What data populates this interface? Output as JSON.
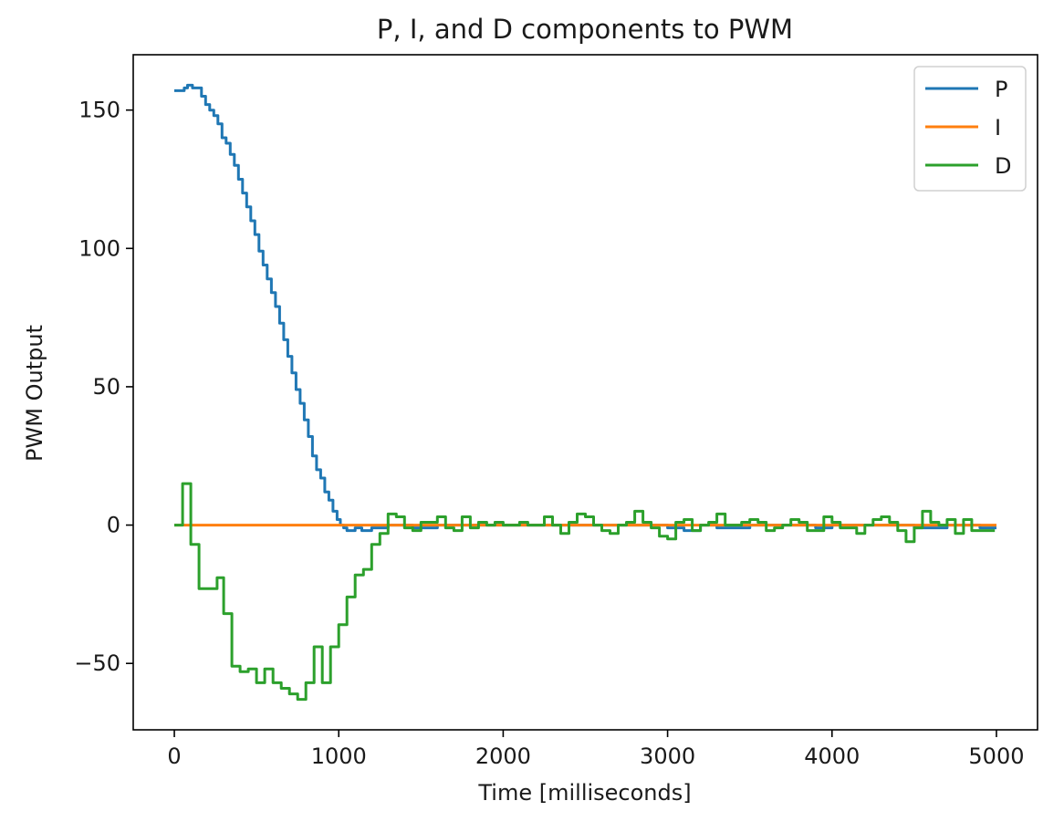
{
  "chart_data": {
    "type": "line",
    "title": "P, I, and D components to PWM",
    "xlabel": "Time [milliseconds]",
    "ylabel": "PWM Output",
    "xlim": [
      -250,
      5250
    ],
    "ylim": [
      -74,
      170
    ],
    "xticks": [
      0,
      1000,
      2000,
      3000,
      4000,
      5000
    ],
    "xtick_labels": [
      "0",
      "1000",
      "2000",
      "3000",
      "4000",
      "5000"
    ],
    "yticks": [
      -50,
      0,
      50,
      100,
      150
    ],
    "ytick_labels": [
      "−50",
      "0",
      "50",
      "100",
      "150"
    ],
    "grid": false,
    "legend_position": "top-right",
    "series": [
      {
        "name": "P",
        "color": "#1f77b4",
        "step": true,
        "points": [
          [
            0,
            157
          ],
          [
            50,
            157
          ],
          [
            60,
            158
          ],
          [
            80,
            159
          ],
          [
            100,
            159
          ],
          [
            110,
            158
          ],
          [
            150,
            158
          ],
          [
            165,
            155
          ],
          [
            190,
            152
          ],
          [
            215,
            150
          ],
          [
            240,
            148
          ],
          [
            265,
            145
          ],
          [
            290,
            140
          ],
          [
            315,
            138
          ],
          [
            340,
            134
          ],
          [
            365,
            130
          ],
          [
            390,
            125
          ],
          [
            415,
            120
          ],
          [
            440,
            115
          ],
          [
            465,
            110
          ],
          [
            490,
            105
          ],
          [
            515,
            99
          ],
          [
            540,
            94
          ],
          [
            565,
            89
          ],
          [
            590,
            84
          ],
          [
            615,
            79
          ],
          [
            640,
            73
          ],
          [
            665,
            67
          ],
          [
            690,
            61
          ],
          [
            715,
            55
          ],
          [
            740,
            49
          ],
          [
            765,
            44
          ],
          [
            790,
            38
          ],
          [
            815,
            32
          ],
          [
            840,
            25
          ],
          [
            865,
            20
          ],
          [
            890,
            17
          ],
          [
            915,
            12
          ],
          [
            940,
            9
          ],
          [
            965,
            5
          ],
          [
            990,
            2
          ],
          [
            1010,
            0
          ],
          [
            1030,
            -1
          ],
          [
            1050,
            -2
          ],
          [
            1100,
            -1
          ],
          [
            1140,
            -2
          ],
          [
            1200,
            -1
          ],
          [
            1300,
            0
          ],
          [
            1450,
            -1
          ],
          [
            1600,
            0
          ],
          [
            2400,
            0
          ],
          [
            2600,
            0
          ],
          [
            2900,
            0
          ],
          [
            3000,
            -1
          ],
          [
            3100,
            -2
          ],
          [
            3200,
            0
          ],
          [
            3300,
            -1
          ],
          [
            3500,
            0
          ],
          [
            3900,
            -1
          ],
          [
            4000,
            0
          ],
          [
            4500,
            -1
          ],
          [
            4700,
            0
          ],
          [
            4900,
            -1
          ],
          [
            5000,
            -1
          ]
        ]
      },
      {
        "name": "I",
        "color": "#ff7f0e",
        "step": false,
        "points": [
          [
            0,
            0
          ],
          [
            5000,
            0
          ]
        ]
      },
      {
        "name": "D",
        "color": "#2ca02c",
        "step": true,
        "points": [
          [
            0,
            0
          ],
          [
            40,
            0
          ],
          [
            50,
            15
          ],
          [
            90,
            15
          ],
          [
            100,
            -7
          ],
          [
            140,
            -7
          ],
          [
            150,
            -23
          ],
          [
            250,
            -23
          ],
          [
            260,
            -19
          ],
          [
            290,
            -19
          ],
          [
            300,
            -32
          ],
          [
            340,
            -32
          ],
          [
            350,
            -51
          ],
          [
            390,
            -51
          ],
          [
            400,
            -53
          ],
          [
            440,
            -53
          ],
          [
            450,
            -52
          ],
          [
            490,
            -52
          ],
          [
            500,
            -57
          ],
          [
            540,
            -57
          ],
          [
            550,
            -52
          ],
          [
            590,
            -52
          ],
          [
            600,
            -57
          ],
          [
            640,
            -57
          ],
          [
            650,
            -59
          ],
          [
            690,
            -59
          ],
          [
            700,
            -61
          ],
          [
            740,
            -61
          ],
          [
            750,
            -63
          ],
          [
            790,
            -63
          ],
          [
            800,
            -57
          ],
          [
            840,
            -57
          ],
          [
            850,
            -44
          ],
          [
            890,
            -44
          ],
          [
            900,
            -57
          ],
          [
            940,
            -57
          ],
          [
            950,
            -44
          ],
          [
            990,
            -44
          ],
          [
            1000,
            -36
          ],
          [
            1040,
            -36
          ],
          [
            1050,
            -26
          ],
          [
            1090,
            -26
          ],
          [
            1100,
            -18
          ],
          [
            1140,
            -18
          ],
          [
            1150,
            -16
          ],
          [
            1190,
            -16
          ],
          [
            1200,
            -7
          ],
          [
            1240,
            -7
          ],
          [
            1250,
            -3
          ],
          [
            1290,
            -3
          ],
          [
            1300,
            4
          ],
          [
            1340,
            4
          ],
          [
            1350,
            3
          ],
          [
            1390,
            3
          ],
          [
            1400,
            -1
          ],
          [
            1440,
            -1
          ],
          [
            1450,
            -2
          ],
          [
            1490,
            -2
          ],
          [
            1500,
            1
          ],
          [
            1540,
            1
          ],
          [
            1550,
            1
          ],
          [
            1590,
            1
          ],
          [
            1600,
            3
          ],
          [
            1640,
            3
          ],
          [
            1650,
            -1
          ],
          [
            1690,
            -1
          ],
          [
            1700,
            -2
          ],
          [
            1740,
            -2
          ],
          [
            1750,
            3
          ],
          [
            1790,
            3
          ],
          [
            1800,
            -1
          ],
          [
            1840,
            -1
          ],
          [
            1850,
            1
          ],
          [
            1890,
            1
          ],
          [
            1900,
            0
          ],
          [
            1940,
            0
          ],
          [
            1950,
            1
          ],
          [
            1990,
            1
          ],
          [
            2000,
            0
          ],
          [
            2100,
            1
          ],
          [
            2150,
            0
          ],
          [
            2200,
            0
          ],
          [
            2250,
            3
          ],
          [
            2290,
            3
          ],
          [
            2300,
            0
          ],
          [
            2340,
            0
          ],
          [
            2350,
            -3
          ],
          [
            2390,
            -3
          ],
          [
            2400,
            1
          ],
          [
            2440,
            1
          ],
          [
            2450,
            4
          ],
          [
            2490,
            4
          ],
          [
            2500,
            3
          ],
          [
            2540,
            3
          ],
          [
            2550,
            0
          ],
          [
            2590,
            0
          ],
          [
            2600,
            -2
          ],
          [
            2640,
            -2
          ],
          [
            2650,
            -3
          ],
          [
            2690,
            -3
          ],
          [
            2700,
            0
          ],
          [
            2740,
            0
          ],
          [
            2750,
            1
          ],
          [
            2790,
            1
          ],
          [
            2800,
            5
          ],
          [
            2840,
            5
          ],
          [
            2850,
            1
          ],
          [
            2890,
            1
          ],
          [
            2900,
            -1
          ],
          [
            2940,
            -1
          ],
          [
            2950,
            -4
          ],
          [
            2990,
            -4
          ],
          [
            3000,
            -5
          ],
          [
            3040,
            -5
          ],
          [
            3050,
            1
          ],
          [
            3090,
            1
          ],
          [
            3100,
            2
          ],
          [
            3140,
            2
          ],
          [
            3150,
            -2
          ],
          [
            3190,
            -2
          ],
          [
            3200,
            0
          ],
          [
            3240,
            0
          ],
          [
            3250,
            1
          ],
          [
            3290,
            1
          ],
          [
            3300,
            4
          ],
          [
            3340,
            4
          ],
          [
            3350,
            0
          ],
          [
            3390,
            0
          ],
          [
            3400,
            0
          ],
          [
            3440,
            0
          ],
          [
            3450,
            1
          ],
          [
            3490,
            1
          ],
          [
            3500,
            2
          ],
          [
            3540,
            2
          ],
          [
            3550,
            1
          ],
          [
            3590,
            1
          ],
          [
            3600,
            -2
          ],
          [
            3640,
            -2
          ],
          [
            3650,
            -1
          ],
          [
            3690,
            -1
          ],
          [
            3700,
            0
          ],
          [
            3740,
            0
          ],
          [
            3750,
            2
          ],
          [
            3790,
            2
          ],
          [
            3800,
            1
          ],
          [
            3840,
            1
          ],
          [
            3850,
            -2
          ],
          [
            3890,
            -2
          ],
          [
            3900,
            -2
          ],
          [
            3940,
            -2
          ],
          [
            3950,
            3
          ],
          [
            3990,
            3
          ],
          [
            4000,
            1
          ],
          [
            4040,
            1
          ],
          [
            4050,
            -1
          ],
          [
            4090,
            -1
          ],
          [
            4100,
            -1
          ],
          [
            4140,
            -1
          ],
          [
            4150,
            -3
          ],
          [
            4190,
            -3
          ],
          [
            4200,
            0
          ],
          [
            4240,
            0
          ],
          [
            4250,
            2
          ],
          [
            4290,
            2
          ],
          [
            4300,
            3
          ],
          [
            4340,
            3
          ],
          [
            4350,
            1
          ],
          [
            4390,
            1
          ],
          [
            4400,
            -2
          ],
          [
            4440,
            -2
          ],
          [
            4450,
            -6
          ],
          [
            4490,
            -6
          ],
          [
            4500,
            -1
          ],
          [
            4540,
            -1
          ],
          [
            4550,
            5
          ],
          [
            4590,
            5
          ],
          [
            4600,
            1
          ],
          [
            4640,
            1
          ],
          [
            4650,
            0
          ],
          [
            4690,
            0
          ],
          [
            4700,
            2
          ],
          [
            4740,
            2
          ],
          [
            4750,
            -3
          ],
          [
            4790,
            -3
          ],
          [
            4800,
            2
          ],
          [
            4840,
            2
          ],
          [
            4850,
            -2
          ],
          [
            4990,
            -2
          ]
        ]
      }
    ]
  }
}
